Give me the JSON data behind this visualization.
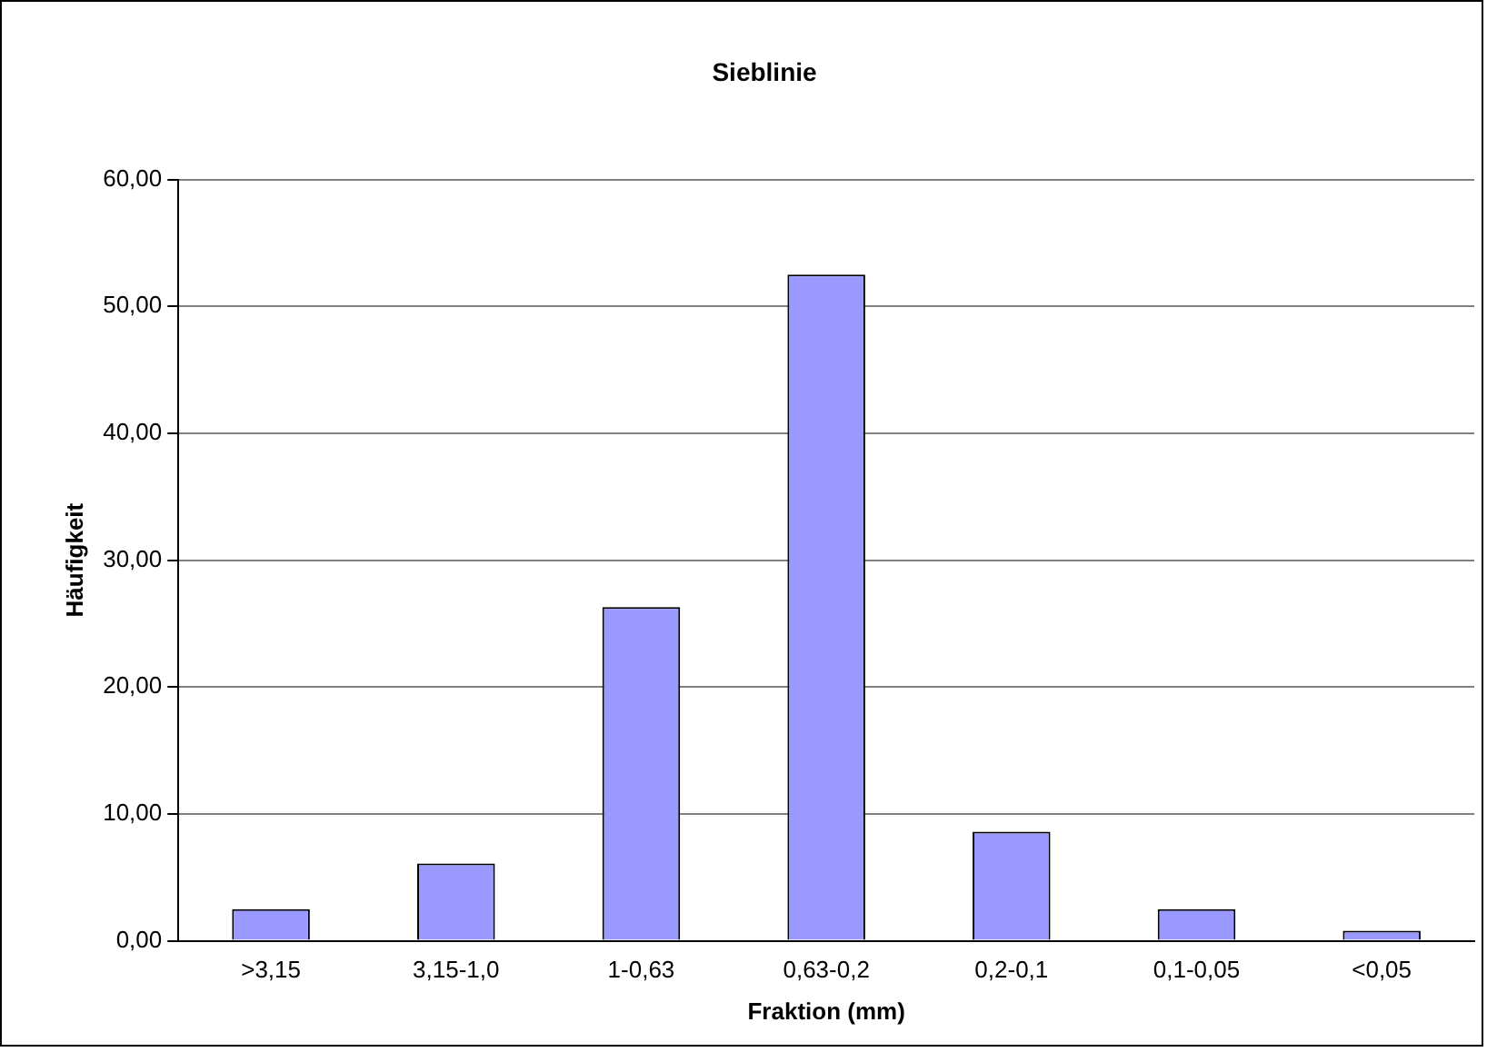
{
  "chart_data": {
    "type": "bar",
    "title": "Sieblinie",
    "xlabel": "Fraktion (mm)",
    "ylabel": "Häufigkeit",
    "categories": [
      ">3,15",
      "3,15-1,0",
      "1-0,63",
      "0,63-0,2",
      "0,2-0,1",
      "0,1-0,05",
      "<0,05"
    ],
    "values": [
      2.5,
      6.1,
      26.3,
      52.5,
      8.6,
      2.5,
      0.8
    ],
    "color": "#9999ff",
    "ylim": [
      0,
      60
    ],
    "yticks": [
      {
        "value": 0,
        "label": "0,00"
      },
      {
        "value": 10,
        "label": "10,00"
      },
      {
        "value": 20,
        "label": "20,00"
      },
      {
        "value": 30,
        "label": "30,00"
      },
      {
        "value": 40,
        "label": "40,00"
      },
      {
        "value": 50,
        "label": "50,00"
      },
      {
        "value": 60,
        "label": "60,00"
      }
    ],
    "grid": "y",
    "legend": false
  }
}
